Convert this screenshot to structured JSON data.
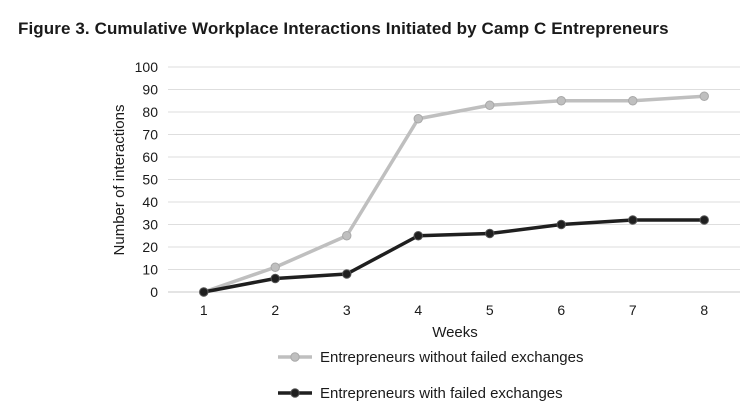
{
  "chart_data": {
    "type": "line",
    "title": "Figure 3.  Cumulative Workplace Interactions Initiated by Camp C Entrepreneurs",
    "xlabel": "Weeks",
    "ylabel": "Number of interactions",
    "categories": [
      "1",
      "2",
      "3",
      "4",
      "5",
      "6",
      "7",
      "8"
    ],
    "yticks": [
      "0",
      "10",
      "20",
      "30",
      "40",
      "50",
      "60",
      "70",
      "80",
      "90",
      "100"
    ],
    "ylim": [
      0,
      100
    ],
    "grid": true,
    "legend_position": "bottom",
    "series": [
      {
        "name": "Entrepreneurs without failed exchanges",
        "color": "#bfbfbf",
        "values": [
          0,
          11,
          25,
          77,
          83,
          85,
          85,
          87
        ]
      },
      {
        "name": "Entrepreneurs with failed exchanges",
        "color": "#1f1f1f",
        "values": [
          0,
          6,
          8,
          25,
          26,
          30,
          32,
          32
        ]
      }
    ]
  }
}
